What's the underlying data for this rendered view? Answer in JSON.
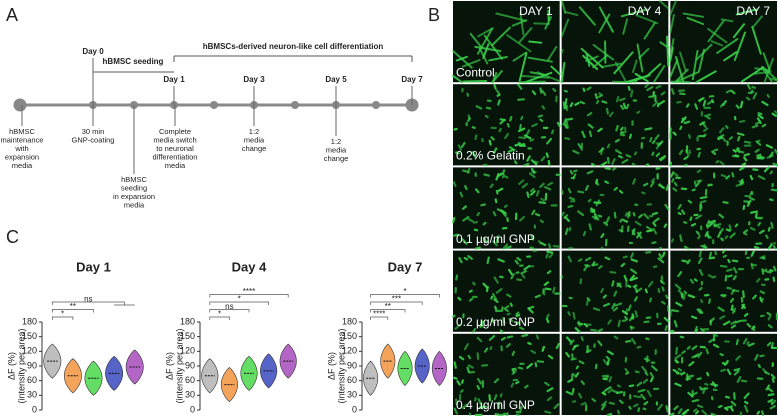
{
  "panel_a": {
    "label": "A",
    "bracket_title": "hBMSCs-derived neuron-like cell differentiation",
    "seeding": "hBMSC seeding",
    "days": [
      "Day 0",
      "Day 1",
      "Day 3",
      "Day 5",
      "Day 7"
    ],
    "notes": [
      [
        "hBMSC",
        "maintenance",
        "with",
        "expansion",
        "media"
      ],
      [
        "30 min",
        "GNP-coating"
      ],
      [
        "hBMSC",
        "seeding",
        "in expansion",
        "media"
      ],
      [
        "Complete",
        "media switch",
        "to neuronal",
        "differentiation",
        "media"
      ],
      [
        "1:2",
        "media",
        "change"
      ],
      [
        "1:2",
        "media",
        "change"
      ]
    ]
  },
  "panel_b": {
    "label": "B",
    "columns": [
      "DAY 1",
      "DAY 4",
      "DAY 7"
    ],
    "rows": [
      "Control",
      "0.2% Gelatin",
      "0.1 µg/ml GNP",
      "0.2 µg/ml GNP",
      "0.4 µg/ml GNP"
    ]
  },
  "panel_c": {
    "label": "C",
    "ylabel": [
      "ΔF (%)",
      "(intensity per area)"
    ]
  },
  "chart_data": [
    {
      "type": "violin",
      "title": "Day 1",
      "colors": [
        "#a8a8a8",
        "#f08424",
        "#2fd12f",
        "#1d2fb4",
        "#9b33b3"
      ],
      "values": [
        100,
        70,
        65,
        75,
        88
      ],
      "ylim": [
        0,
        180
      ],
      "yticks": [
        0,
        30,
        60,
        90,
        120,
        150,
        180
      ],
      "comparisons": [
        {
          "label": "*",
          "groups": [
            0,
            1
          ]
        },
        {
          "label": "**",
          "groups": [
            0,
            2
          ]
        },
        {
          "label": "ns",
          "groups": [
            0,
            3,
            4
          ]
        }
      ]
    },
    {
      "type": "violin",
      "title": "Day 4",
      "colors": [
        "#a8a8a8",
        "#f08424",
        "#2fd12f",
        "#1d2fb4",
        "#9b33b3"
      ],
      "values": [
        70,
        52,
        75,
        80,
        100
      ],
      "ylim": [
        0,
        180
      ],
      "yticks": [
        0,
        30,
        60,
        90,
        120,
        150,
        180
      ],
      "comparisons": [
        {
          "label": "*",
          "groups": [
            0,
            1
          ]
        },
        {
          "label": "ns",
          "groups": [
            0,
            2
          ]
        },
        {
          "label": "*",
          "groups": [
            0,
            3
          ]
        },
        {
          "label": "****",
          "groups": [
            0,
            4
          ]
        }
      ]
    },
    {
      "type": "violin",
      "title": "Day 7",
      "colors": [
        "#a8a8a8",
        "#f08424",
        "#2fd12f",
        "#1d2fb4",
        "#9b33b3"
      ],
      "values": [
        65,
        100,
        85,
        90,
        85
      ],
      "ylim": [
        0,
        180
      ],
      "yticks": [
        0,
        30,
        60,
        90,
        120,
        150,
        180
      ],
      "comparisons": [
        {
          "label": "****",
          "groups": [
            0,
            1
          ]
        },
        {
          "label": "**",
          "groups": [
            0,
            2
          ]
        },
        {
          "label": "***",
          "groups": [
            0,
            3
          ]
        },
        {
          "label": "*",
          "groups": [
            0,
            4
          ]
        }
      ]
    }
  ]
}
